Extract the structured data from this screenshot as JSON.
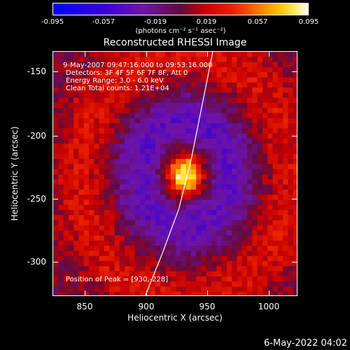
{
  "colorbar": {
    "ticks": [
      "-0.095",
      "-0.057",
      "-0.019",
      "0.019",
      "0.057",
      "0.095"
    ],
    "unit": "(photons cm⁻² s⁻¹ asec⁻²)",
    "range": [
      -0.095,
      0.095
    ]
  },
  "chart_data": {
    "type": "heatmap",
    "title": "Reconstructed RHESSI Image",
    "xlabel": "Heliocentric X (arcsec)",
    "ylabel": "Heliocentric Y (arcsec)",
    "xlim": [
      825,
      1020
    ],
    "ylim": [
      -325,
      -130
    ],
    "xticks": [
      "850",
      "900",
      "950",
      "1000"
    ],
    "yticks": [
      "-150",
      "-200",
      "-250",
      "-300"
    ],
    "annotations": [
      "9-May-2007 09:47:16.000 to 09:53:16.000",
      "Detectors: 3F 4F 5F 6F 7F 8F, Att 0",
      "Energy Range: 3.0 - 6.0 keV",
      "Clean     Total counts: 1.21E+04"
    ],
    "peak_label": "Position of Peak = [930,-228]",
    "peak": [
      930,
      -228
    ],
    "limb_curve": [
      [
        898,
        -325
      ],
      [
        912,
        -290
      ],
      [
        925,
        -255
      ],
      [
        935,
        -215
      ],
      [
        942,
        -180
      ],
      [
        948,
        -150
      ],
      [
        952,
        -130
      ]
    ]
  },
  "footer": {
    "date": "6-May-2022 04:02"
  },
  "colors": {
    "background": "#000000",
    "axes": "#ffffff"
  }
}
